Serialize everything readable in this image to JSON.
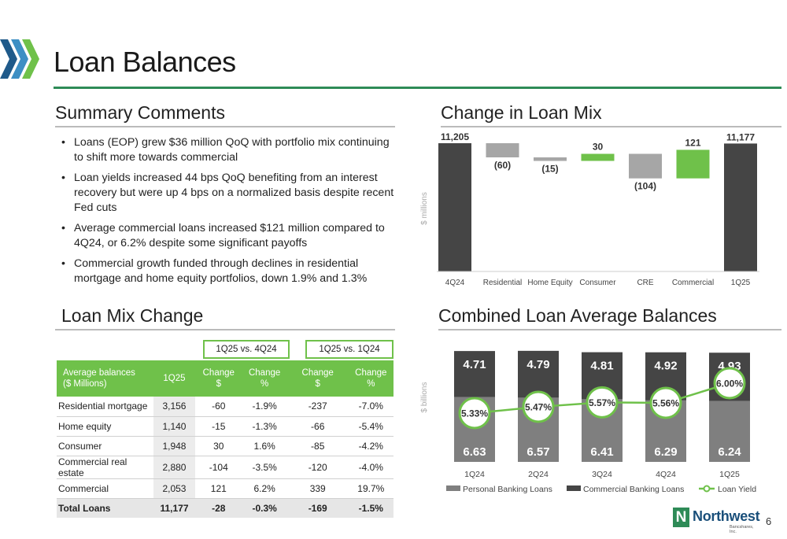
{
  "header": {
    "title": "Loan Balances"
  },
  "summary": {
    "title": "Summary Comments",
    "bullets": [
      "Loans (EOP) grew $36 million QoQ with portfolio mix continuing to shift more towards commercial",
      "Loan yields increased 44 bps QoQ benefiting from an interest recovery but were up 4 bps on a normalized basis despite recent Fed cuts",
      "Average commercial loans increased $121 million compared to 4Q24, or 6.2% despite some significant payoffs",
      "Commercial growth funded through declines in residential mortgage and home equity portfolios, down 1.9% and 1.3%"
    ]
  },
  "mix_table": {
    "title": "Loan Mix Change",
    "group_headers": [
      "1Q25 vs. 4Q24",
      "1Q25 vs. 1Q24"
    ],
    "columns": [
      "Average balances\n($ Millions)",
      "1Q25",
      "Change\n$",
      "Change\n%",
      "Change\n$",
      "Change\n%"
    ],
    "rows": [
      [
        "Residential mortgage",
        "3,156",
        "-60",
        "-1.9%",
        "-237",
        "-7.0%"
      ],
      [
        "Home equity",
        "1,140",
        "-15",
        "-1.3%",
        "-66",
        "-5.4%"
      ],
      [
        "Consumer",
        "1,948",
        "30",
        "1.6%",
        "-85",
        "-4.2%"
      ],
      [
        "Commercial real estate",
        "2,880",
        "-104",
        "-3.5%",
        "-120",
        "-4.0%"
      ],
      [
        "Commercial",
        "2,053",
        "121",
        "6.2%",
        "339",
        "19.7%"
      ]
    ],
    "total": [
      "Total Loans",
      "11,177",
      "-28",
      "-0.3%",
      "-169",
      "-1.5%"
    ]
  },
  "chart_data": [
    {
      "type": "bar",
      "title": "Change in Loan Mix",
      "ylabel": "$ millions",
      "categories": [
        "4Q24",
        "Residential",
        "Home Equity",
        "Consumer",
        "CRE",
        "Commercial",
        "1Q25"
      ],
      "values": [
        11205,
        -60,
        -15,
        30,
        -104,
        121,
        11177
      ],
      "labels": [
        "11,205",
        "(60)",
        "(15)",
        "30",
        "(104)",
        "121",
        "11,177"
      ],
      "kinds": [
        "total",
        "delta",
        "delta",
        "delta",
        "delta",
        "delta",
        "total"
      ],
      "colors": {
        "total": "#454545",
        "decrease": "#a6a6a6",
        "increase": "#6fc14a"
      }
    },
    {
      "type": "bar",
      "title": "Combined Loan Average Balances",
      "ylabel": "$ billions",
      "categories": [
        "1Q24",
        "2Q24",
        "3Q24",
        "4Q24",
        "1Q25"
      ],
      "series": [
        {
          "name": "Personal Banking Loans",
          "values": [
            6.63,
            6.57,
            6.41,
            6.29,
            6.24
          ],
          "labels": [
            "6.63",
            "6.57",
            "6.41",
            "6.29",
            "6.24"
          ],
          "color": "#7f7f7f"
        },
        {
          "name": "Commercial Banking Loans",
          "values": [
            4.71,
            4.79,
            4.81,
            4.92,
            4.93
          ],
          "labels": [
            "4.71",
            "4.79",
            "4.81",
            "4.92",
            "4.93"
          ],
          "color": "#454545"
        },
        {
          "name": "Loan Yield",
          "type": "line",
          "values": [
            5.33,
            5.47,
            5.57,
            5.56,
            6.0
          ],
          "labels": [
            "5.33%",
            "5.47%",
            "5.57%",
            "5.56%",
            "6.00%"
          ],
          "color": "#6fc14a"
        }
      ],
      "legend_position": "bottom"
    }
  ],
  "brand": {
    "name": "Northwest",
    "sub": "Bancshares, Inc.",
    "letter": "N"
  },
  "page": {
    "number": "6"
  }
}
